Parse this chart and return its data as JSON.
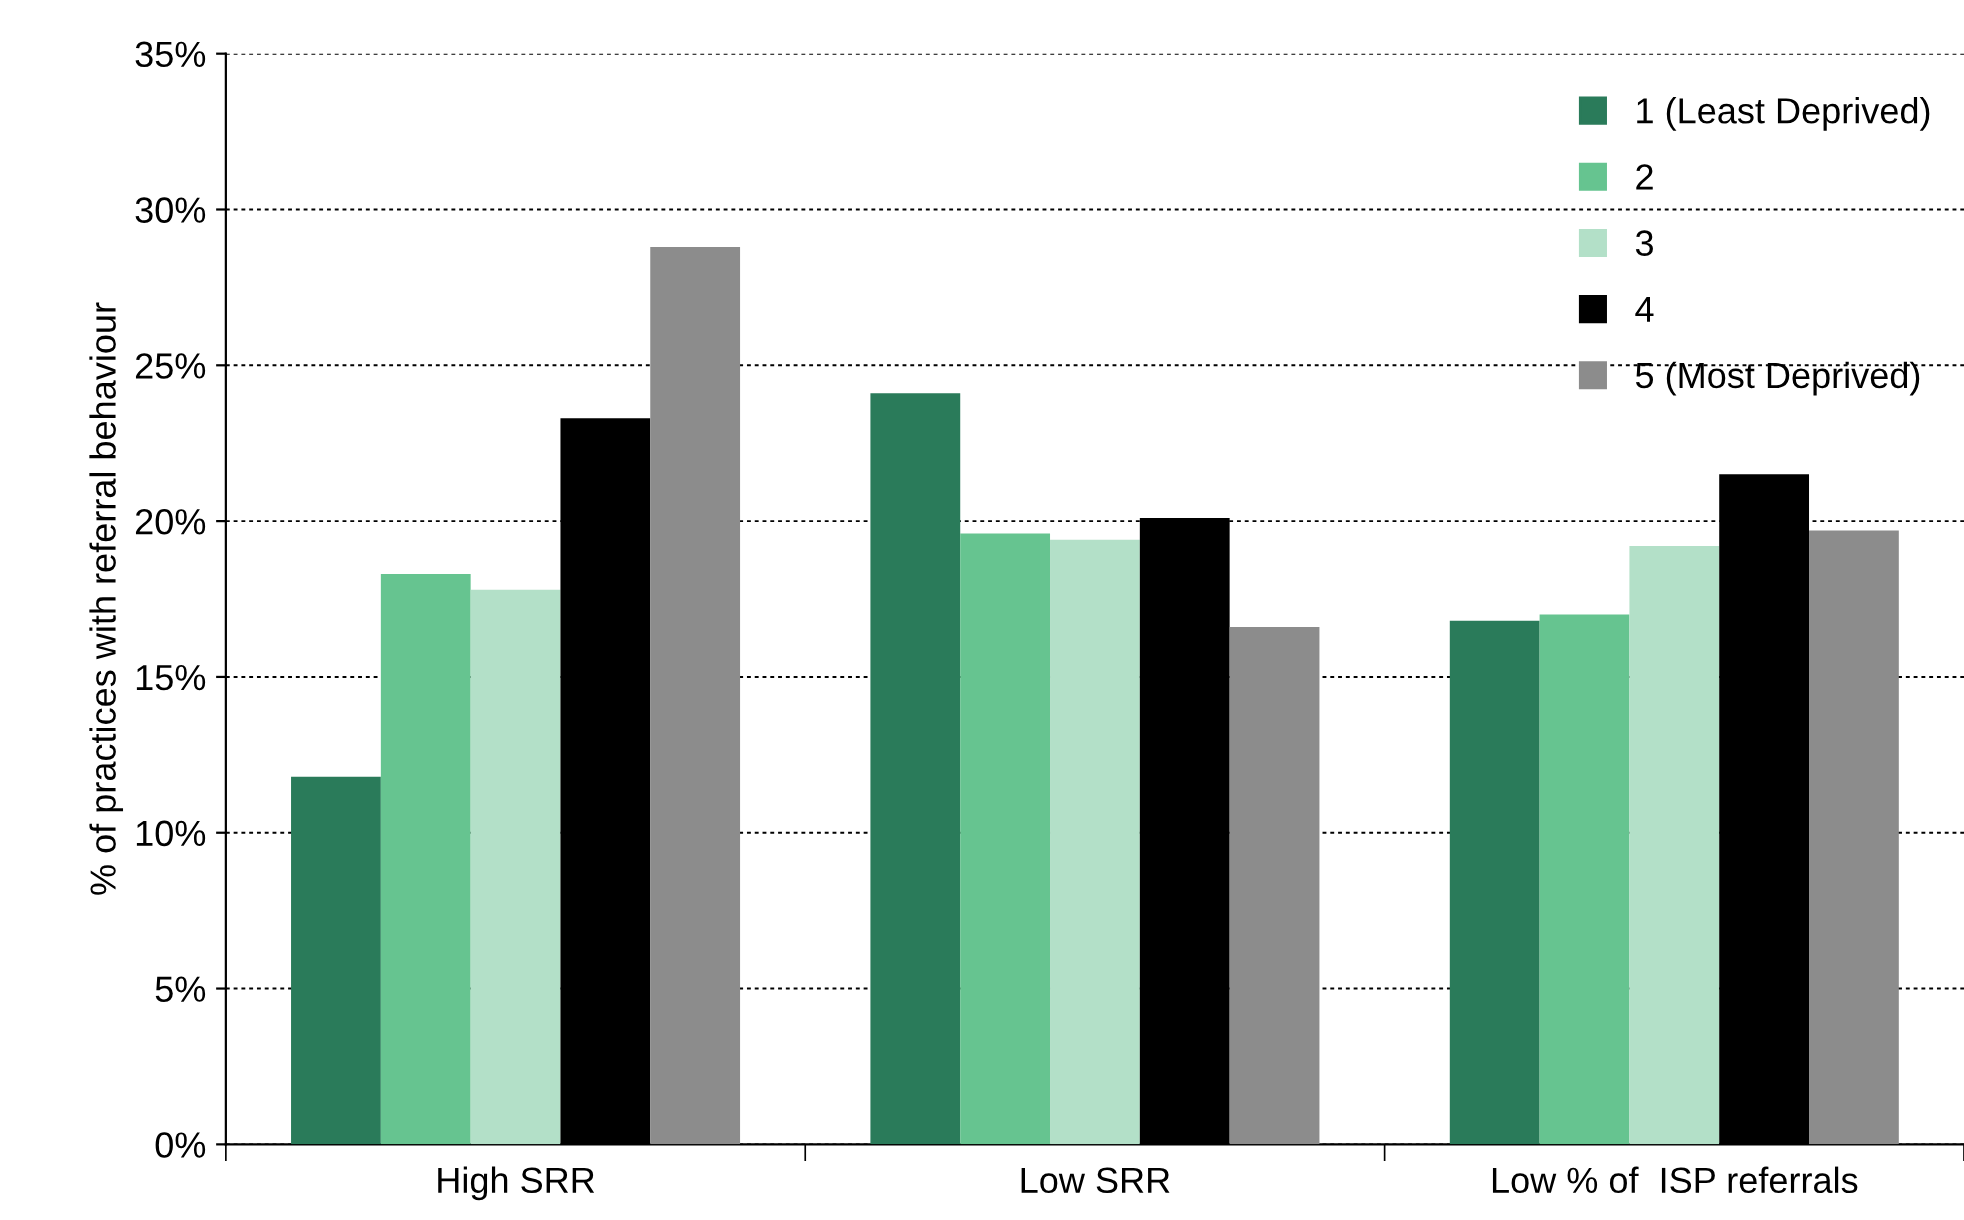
{
  "chart_data": {
    "type": "bar",
    "ylabel": "% of practices with referral behaviour",
    "categories": [
      "High SRR",
      "Low SRR",
      "Low % of  ISP referrals"
    ],
    "series": [
      {
        "name": "1 (Least Deprived)",
        "color": "#2a7b5a",
        "values": [
          11.8,
          24.1,
          16.8
        ]
      },
      {
        "name": "2",
        "color": "#66c490",
        "values": [
          18.3,
          19.6,
          17.0
        ]
      },
      {
        "name": "3",
        "color": "#b3e0c8",
        "values": [
          17.8,
          19.4,
          19.2
        ]
      },
      {
        "name": "4",
        "color": "#000000",
        "values": [
          23.3,
          20.1,
          21.5
        ]
      },
      {
        "name": "5 (Most Deprived)",
        "color": "#8c8c8c",
        "values": [
          28.8,
          16.6,
          19.7
        ]
      }
    ],
    "ylim": [
      0,
      35
    ],
    "yticks": [
      {
        "value": 0,
        "label": "0%"
      },
      {
        "value": 5,
        "label": "5%"
      },
      {
        "value": 10,
        "label": "10%"
      },
      {
        "value": 15,
        "label": "15%"
      },
      {
        "value": 20,
        "label": "20%"
      },
      {
        "value": 25,
        "label": "25%"
      },
      {
        "value": 30,
        "label": "30%"
      },
      {
        "value": 35,
        "label": "35%"
      }
    ],
    "grid": "y",
    "legend": "top right"
  }
}
